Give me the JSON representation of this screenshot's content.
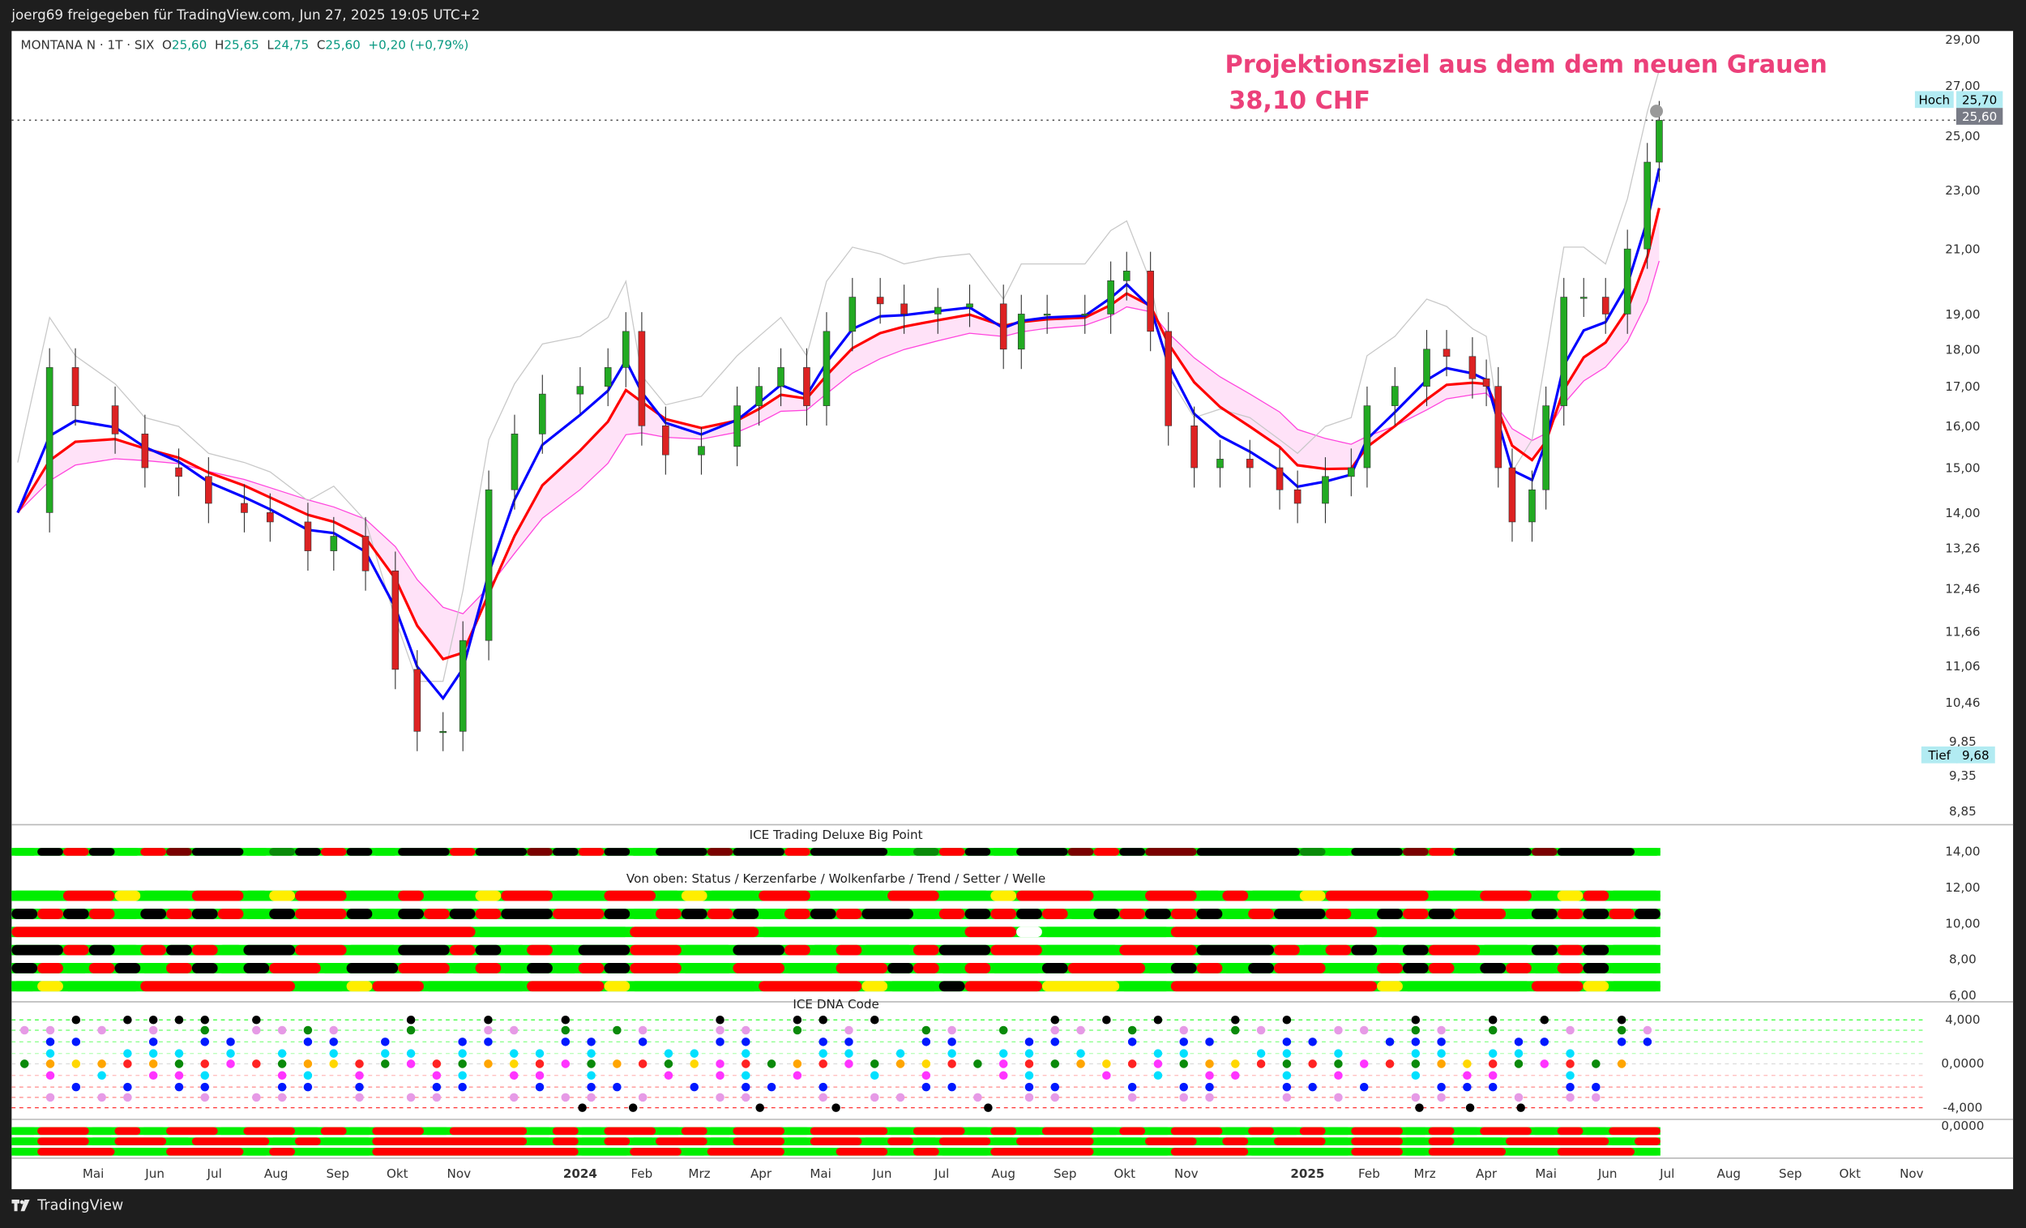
{
  "header": {
    "shared_by": "joerg69 freigegeben für TradingView.com, Jun 27, 2025 19:05 UTC+2"
  },
  "legend": {
    "symbol": "MONTANA N · 1T · SIX",
    "open_label": "O",
    "open": "25,60",
    "high_label": "H",
    "high": "25,65",
    "low_label": "L",
    "low": "24,75",
    "close_label": "C",
    "close": "25,60",
    "change": "+0,20 (+0,79%)"
  },
  "annotation": {
    "line1": "Projektionsziel aus dem dem neuen Grauen",
    "line2": "38,10 CHF",
    "color": "#ec407a"
  },
  "footer": {
    "brand": "TradingView"
  },
  "colors": {
    "up": "#089981",
    "down": "#f23645",
    "fast_line": "#0000ff",
    "slow_line": "#ff0000",
    "cloud": "#ffd6f5",
    "hoch_tief_bg": "#b2ebf2",
    "last_price_bg": "#787b86"
  },
  "chart_data": {
    "type": "candlestick",
    "title": "",
    "y_scale": "log",
    "ylim": [
      8.85,
      29.0
    ],
    "price_ticks": [
      "29,00",
      "27,00",
      "25,00",
      "23,00",
      "21,00",
      "19,00",
      "18,00",
      "17,00",
      "16,00",
      "15,00",
      "14,00",
      "13,26",
      "12,46",
      "11,66",
      "11,06",
      "10,46",
      "9,85",
      "9,35",
      "8,85"
    ],
    "price_tick_values": [
      29,
      27,
      25,
      23,
      21,
      19,
      18,
      17,
      16,
      15,
      14,
      13.26,
      12.46,
      11.66,
      11.06,
      10.46,
      9.85,
      9.35,
      8.85
    ],
    "high_marker": {
      "label": "Hoch",
      "value": "25,70",
      "v": 25.7
    },
    "low_marker": {
      "label": "Tief",
      "value": "9,68",
      "v": 9.68
    },
    "last_price": {
      "value": "25,60",
      "v": 25.6
    },
    "x_ticks": [
      {
        "label": "Mai",
        "date": "2023-05-01"
      },
      {
        "label": "Jun",
        "date": "2023-06-01"
      },
      {
        "label": "Jul",
        "date": "2023-07-01"
      },
      {
        "label": "Aug",
        "date": "2023-08-01"
      },
      {
        "label": "Sep",
        "date": "2023-09-01"
      },
      {
        "label": "Okt",
        "date": "2023-10-01"
      },
      {
        "label": "Nov",
        "date": "2023-11-01"
      },
      {
        "label": "2024",
        "date": "2024-01-01",
        "bold": true
      },
      {
        "label": "Feb",
        "date": "2024-02-01"
      },
      {
        "label": "Mrz",
        "date": "2024-03-01"
      },
      {
        "label": "Apr",
        "date": "2024-04-01"
      },
      {
        "label": "Mai",
        "date": "2024-05-01"
      },
      {
        "label": "Jun",
        "date": "2024-06-01"
      },
      {
        "label": "Jul",
        "date": "2024-07-01"
      },
      {
        "label": "Aug",
        "date": "2024-08-01"
      },
      {
        "label": "Sep",
        "date": "2024-09-01"
      },
      {
        "label": "Okt",
        "date": "2024-10-01"
      },
      {
        "label": "Nov",
        "date": "2024-11-01"
      },
      {
        "label": "2025",
        "date": "2025-01-01",
        "bold": true
      },
      {
        "label": "Feb",
        "date": "2025-02-01"
      },
      {
        "label": "Mrz",
        "date": "2025-03-01"
      },
      {
        "label": "Apr",
        "date": "2025-04-01"
      },
      {
        "label": "Mai",
        "date": "2025-05-01"
      },
      {
        "label": "Jun",
        "date": "2025-06-01"
      },
      {
        "label": "Jul",
        "date": "2025-07-01"
      },
      {
        "label": "Aug",
        "date": "2025-08-01"
      },
      {
        "label": "Sep",
        "date": "2025-09-01"
      },
      {
        "label": "Okt",
        "date": "2025-10-01"
      },
      {
        "label": "Nov",
        "date": "2025-11-01"
      }
    ],
    "series": [
      {
        "date": "2023-03-24",
        "close": 14.0
      },
      {
        "date": "2023-04-09",
        "close": 17.5
      },
      {
        "date": "2023-04-22",
        "close": 16.5
      },
      {
        "date": "2023-05-12",
        "close": 15.8
      },
      {
        "date": "2023-05-27",
        "close": 15.0
      },
      {
        "date": "2023-06-13",
        "close": 14.8
      },
      {
        "date": "2023-06-28",
        "close": 14.2
      },
      {
        "date": "2023-07-16",
        "close": 14.0
      },
      {
        "date": "2023-07-29",
        "close": 13.8
      },
      {
        "date": "2023-08-17",
        "close": 13.2
      },
      {
        "date": "2023-08-30",
        "close": 13.5
      },
      {
        "date": "2023-09-15",
        "close": 12.8
      },
      {
        "date": "2023-09-30",
        "close": 11.0
      },
      {
        "date": "2023-10-11",
        "close": 10.0
      },
      {
        "date": "2023-10-24",
        "close": 10.0
      },
      {
        "date": "2023-11-03",
        "close": 11.5
      },
      {
        "date": "2023-11-16",
        "close": 14.5
      },
      {
        "date": "2023-11-29",
        "close": 15.8
      },
      {
        "date": "2023-12-13",
        "close": 16.8
      },
      {
        "date": "2024-01-01",
        "close": 17.0
      },
      {
        "date": "2024-01-15",
        "close": 17.5
      },
      {
        "date": "2024-01-24",
        "close": 18.5
      },
      {
        "date": "2024-02-01",
        "close": 16.0
      },
      {
        "date": "2024-02-13",
        "close": 15.3
      },
      {
        "date": "2024-03-02",
        "close": 15.5
      },
      {
        "date": "2024-03-20",
        "close": 16.5
      },
      {
        "date": "2024-03-31",
        "close": 17.0
      },
      {
        "date": "2024-04-11",
        "close": 17.5
      },
      {
        "date": "2024-04-24",
        "close": 16.5
      },
      {
        "date": "2024-05-04",
        "close": 18.5
      },
      {
        "date": "2024-05-17",
        "close": 19.5
      },
      {
        "date": "2024-05-31",
        "close": 19.3
      },
      {
        "date": "2024-06-12",
        "close": 19.0
      },
      {
        "date": "2024-06-29",
        "close": 19.2
      },
      {
        "date": "2024-07-15",
        "close": 19.3
      },
      {
        "date": "2024-08-01",
        "close": 18.0
      },
      {
        "date": "2024-08-10",
        "close": 19.0
      },
      {
        "date": "2024-08-23",
        "close": 19.0
      },
      {
        "date": "2024-09-11",
        "close": 19.0
      },
      {
        "date": "2024-09-24",
        "close": 20.0
      },
      {
        "date": "2024-10-02",
        "close": 20.3
      },
      {
        "date": "2024-10-14",
        "close": 18.5
      },
      {
        "date": "2024-10-23",
        "close": 16.0
      },
      {
        "date": "2024-11-05",
        "close": 15.0
      },
      {
        "date": "2024-11-18",
        "close": 15.2
      },
      {
        "date": "2024-12-03",
        "close": 15.0
      },
      {
        "date": "2024-12-18",
        "close": 14.5
      },
      {
        "date": "2024-12-27",
        "close": 14.2
      },
      {
        "date": "2025-01-10",
        "close": 14.8
      },
      {
        "date": "2025-01-23",
        "close": 15.0
      },
      {
        "date": "2025-01-31",
        "close": 16.5
      },
      {
        "date": "2025-02-14",
        "close": 17.0
      },
      {
        "date": "2025-03-02",
        "close": 18.0
      },
      {
        "date": "2025-03-12",
        "close": 17.8
      },
      {
        "date": "2025-03-25",
        "close": 17.2
      },
      {
        "date": "2025-04-01",
        "close": 17.0
      },
      {
        "date": "2025-04-07",
        "close": 15.0
      },
      {
        "date": "2025-04-14",
        "close": 13.8
      },
      {
        "date": "2025-04-24",
        "close": 14.5
      },
      {
        "date": "2025-05-01",
        "close": 16.5
      },
      {
        "date": "2025-05-10",
        "close": 19.5
      },
      {
        "date": "2025-05-20",
        "close": 19.5
      },
      {
        "date": "2025-05-31",
        "close": 19.0
      },
      {
        "date": "2025-06-11",
        "close": 21.0
      },
      {
        "date": "2025-06-21",
        "close": 24.0
      },
      {
        "date": "2025-06-27",
        "close": 25.6
      }
    ]
  },
  "indicators": {
    "bigpoint": {
      "title": "ICE Trading Deluxe Big Point",
      "ticks": [
        "14,00",
        "12,00",
        "10,00",
        "8,00",
        "6,00"
      ],
      "row": "GKRKGRMKKGDKRKGKKRKKMKRKGKKMKKRKKKGDRKGKKMRKMMKKKKDGKKMRKKKMKKKG"
    },
    "status": {
      "title": "Von oben: Status / Kerzenfarbe / Wolkenfarbe / Trend / Setter / Welle",
      "rows": [
        "GGRRYGGRRGYRRGGRGGYRRGGRRGYGGRRGGGRRGGYRRRGGRRGRGGYRRRRGGRRGYRGG",
        "KRKRGKRKRGKRRKGKRKRKKRRKGRKRKGRKRKKGRKRKRGKRKRKGRKKRGKRKRRGKRKRK",
        "RRRRRRRRRRRRRRRRRRGGGGGGRRRRRGGGGGGGGRRWGGGGGRRRRRRRRGGGGGGGGGGG",
        "KKRKGRKRGKKRRGGKKRKGRGKKRRGGKKRGRGGRKKRRGGGRRRKKKRGRKGKRRGGKRKGG",
        "KRGRKGRKGKRRGKKRRGRGKGRKRRGGRRGGRRKRGRGGKRRRGKRGKRRGGRKRGKRGRKGG",
        "GYGGGRRRRRRGGYRRGGGGRRRYGGGGGRRRRYGGKRRRYYYGGRRRRRRRRYGGGGGRRYGG"
      ]
    },
    "dna": {
      "title": "ICE DNA Code",
      "ticks": [
        "4,000",
        "0,0000",
        "-4,000"
      ],
      "rows": [
        "..K.KKKK.K.....K..K..K.....K..KK.K......K.K.K..K.K....K..K.K..K.",
        "PP.P.P.G.PPGP..G..PP.G.GP..PP.G.P..GP.G.PP.G.P.GP..PP.GP.G..P.GP",
        ".BB..B.BB..BB.B..BB..BB.B..BB..BB..BB..BB..B.BB..BB..BBB..BB..BB",
        ".C..CCC.C.C.C.CC.C.CC.C..CC.C..CC.C.C.CC.C..CC..CC.C..CC.CC.C...",
        "GOYOROGRMRGOYRGMRGOYRMGORGYMRGORMGOYRGMRGOYRMGOYRGRGMRGOYRGMRGO.",
        ".M.C.MMC..MC.M..MC.MM.C..M.MC.M..C.M..MC..M.C.MM.C.M..C.MM..C...",
        "..B.B.BB..BB.B..BB..B.BB..B.BB.B...BB..BB..B.BB..BB.B..BBB..BB..",
        ".P.PP..P.PP..P.PP..P.PP.P..PP..P.PP..P.PP..P.PP..P.P..PP..P.PP..",
        "......................K.K....K..K.....K................K.K.K....."
      ]
    },
    "bottom": {
      "tick": "0,0000",
      "rows": [
        "GRRGRGRRGRRGRGRRGRRRGRGRRGRGRRGRRRGRRGRGRRGRGRRGRGRGRRGRGRRGRGRR",
        "GRRGRRGRRRGRGGRRRRRRGRGRGRRGRRGRRGRGRRGRRRGGRRGRGRRGRRGRGGRRRRGR",
        "GRRRGGRRRGRGGGRRRRRRRRGGRRGRRRGGRRGRGGRRRRGGGRRRGGGGRRGRRRGGRRRG"
      ]
    }
  }
}
